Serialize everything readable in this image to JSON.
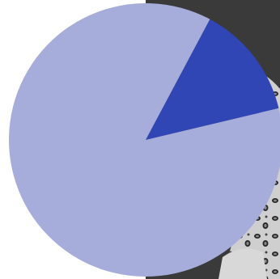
{
  "colors": {
    "background": "#ffffff",
    "photo_dark": "#3a3a3a",
    "photo_light": "#bdbdbd"
  },
  "chart_data": {
    "type": "pie",
    "start_angle_deg": -62,
    "slices": [
      {
        "value": 13.5,
        "color": "#3146b5"
      },
      {
        "value": 86.5,
        "color": "#a7addb"
      }
    ]
  }
}
